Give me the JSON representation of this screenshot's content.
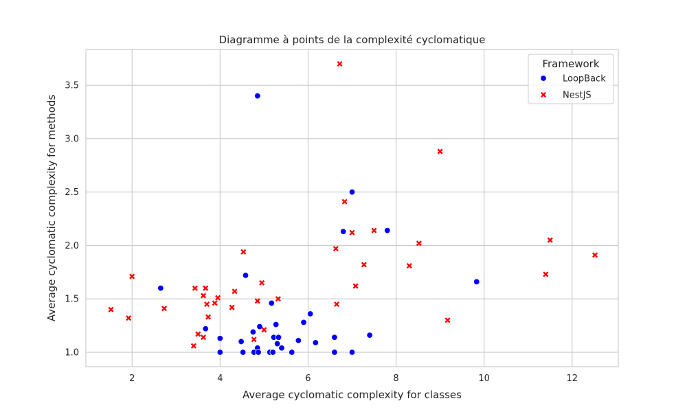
{
  "chart_data": {
    "type": "scatter",
    "title": "Diagramme à points de la complexité cyclomatique",
    "xlabel": "Average cyclomatic complexity for classes",
    "ylabel": "Average cyclomatic complexity for methods",
    "xlim": [
      0.95,
      13.05
    ],
    "ylim": [
      0.865,
      3.835
    ],
    "xticks": [
      2,
      4,
      6,
      8,
      10,
      12
    ],
    "yticks": [
      1.0,
      1.5,
      2.0,
      2.5,
      3.0,
      3.5
    ],
    "ytick_labels": [
      "1.0",
      "1.5",
      "2.0",
      "2.5",
      "3.0",
      "3.5"
    ],
    "grid": true,
    "legend": {
      "title": "Framework",
      "placement": "top-right"
    },
    "series": [
      {
        "name": "LoopBack",
        "marker": "circle",
        "color": "#0000ff",
        "points": [
          [
            4.85,
            3.4
          ],
          [
            7.0,
            2.5
          ],
          [
            6.8,
            2.13
          ],
          [
            7.8,
            2.14
          ],
          [
            9.83,
            1.66
          ],
          [
            2.65,
            1.6
          ],
          [
            4.58,
            1.72
          ],
          [
            5.17,
            1.46
          ],
          [
            6.05,
            1.36
          ],
          [
            5.9,
            1.28
          ],
          [
            3.67,
            1.22
          ],
          [
            4.9,
            1.24
          ],
          [
            5.27,
            1.26
          ],
          [
            4.75,
            1.19
          ],
          [
            7.4,
            1.16
          ],
          [
            4.0,
            1.13
          ],
          [
            4.48,
            1.1
          ],
          [
            5.22,
            1.14
          ],
          [
            5.33,
            1.14
          ],
          [
            5.78,
            1.11
          ],
          [
            6.17,
            1.09
          ],
          [
            6.6,
            1.14
          ],
          [
            5.3,
            1.08
          ],
          [
            4.85,
            1.04
          ],
          [
            5.4,
            1.04
          ],
          [
            4.0,
            1.0
          ],
          [
            4.52,
            1.0
          ],
          [
            4.77,
            1.0
          ],
          [
            4.87,
            1.0
          ],
          [
            5.13,
            1.0
          ],
          [
            5.2,
            1.0
          ],
          [
            5.63,
            1.0
          ],
          [
            6.6,
            1.0
          ],
          [
            7.0,
            1.0
          ]
        ]
      },
      {
        "name": "NestJS",
        "marker": "x",
        "color": "#ff0000",
        "points": [
          [
            6.72,
            3.7
          ],
          [
            9.0,
            2.88
          ],
          [
            6.83,
            2.41
          ],
          [
            7.0,
            2.12
          ],
          [
            7.5,
            2.14
          ],
          [
            8.52,
            2.02
          ],
          [
            6.63,
            1.97
          ],
          [
            11.5,
            2.05
          ],
          [
            12.52,
            1.91
          ],
          [
            4.53,
            1.94
          ],
          [
            7.27,
            1.82
          ],
          [
            8.3,
            1.81
          ],
          [
            11.4,
            1.73
          ],
          [
            2.0,
            1.71
          ],
          [
            4.95,
            1.65
          ],
          [
            7.08,
            1.62
          ],
          [
            3.43,
            1.6
          ],
          [
            3.67,
            1.6
          ],
          [
            4.33,
            1.57
          ],
          [
            3.62,
            1.53
          ],
          [
            3.95,
            1.51
          ],
          [
            5.32,
            1.5
          ],
          [
            4.85,
            1.48
          ],
          [
            3.7,
            1.45
          ],
          [
            3.88,
            1.46
          ],
          [
            6.65,
            1.45
          ],
          [
            2.73,
            1.41
          ],
          [
            1.52,
            1.4
          ],
          [
            4.27,
            1.42
          ],
          [
            3.73,
            1.33
          ],
          [
            1.92,
            1.32
          ],
          [
            9.17,
            1.3
          ],
          [
            5.0,
            1.21
          ],
          [
            3.5,
            1.17
          ],
          [
            3.62,
            1.14
          ],
          [
            4.77,
            1.12
          ],
          [
            3.4,
            1.06
          ]
        ]
      }
    ]
  }
}
